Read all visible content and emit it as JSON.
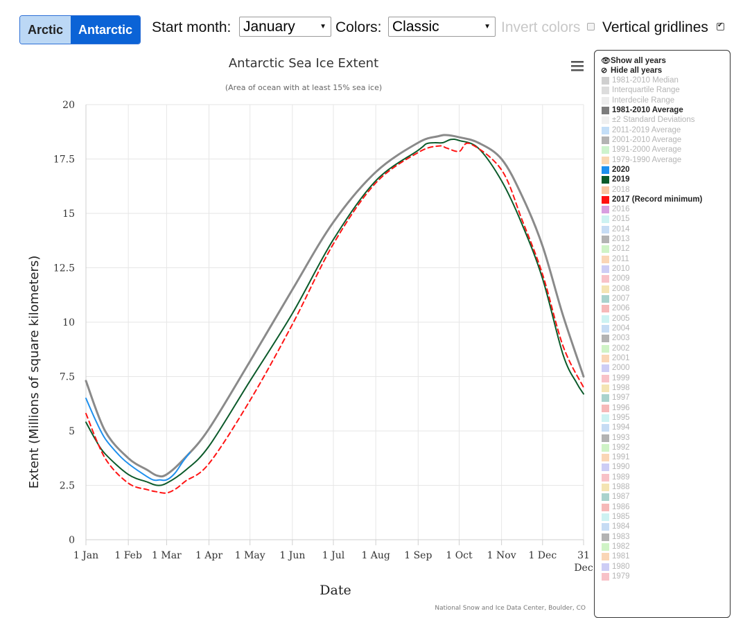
{
  "toolbar": {
    "hemispheres": [
      "Arctic",
      "Antarctic"
    ],
    "active_hemisphere": "Antarctic",
    "start_month_label": "Start month:",
    "start_month_value": "January",
    "colors_label": "Colors:",
    "colors_value": "Classic",
    "invert_colors_label": "Invert colors",
    "invert_colors_checked": false,
    "vertical_gridlines_label": "Vertical gridlines",
    "vertical_gridlines_checked": true
  },
  "legend": {
    "show_all_label": "Show all years",
    "hide_all_label": "Hide all years",
    "items": [
      {
        "label": "1981-2010 Median",
        "color": "#cfcfcf",
        "active": false
      },
      {
        "label": "Interquartile Range",
        "color": "#dcdcdc",
        "active": false
      },
      {
        "label": "Interdecile Range",
        "color": "#ececec",
        "active": false
      },
      {
        "label": "1981-2010 Average",
        "color": "#7c7c7c",
        "active": true
      },
      {
        "label": "±2 Standard Deviations",
        "color": "#efefef",
        "active": false
      },
      {
        "label": "2011-2019 Average",
        "color": "#c3def7",
        "active": false
      },
      {
        "label": "2001-2010 Average",
        "color": "#b3b3b3",
        "active": false
      },
      {
        "label": "1991-2000 Average",
        "color": "#cdf3cd",
        "active": false
      },
      {
        "label": "1979-1990 Average",
        "color": "#f9d8b4",
        "active": false
      },
      {
        "label": "2020",
        "color": "#1e90ee",
        "active": true
      },
      {
        "label": "2019",
        "color": "#0b5a2a",
        "active": true
      },
      {
        "label": "2018",
        "color": "#f9c6a1",
        "active": false
      },
      {
        "label": "2017 (Record minimum)",
        "color": "#ff1010",
        "active": true
      },
      {
        "label": "2016",
        "color": "#d89ee0",
        "active": false
      },
      {
        "label": "2015",
        "color": "#cdf2f2",
        "active": false
      },
      {
        "label": "2014",
        "color": "#c6dcf4",
        "active": false
      },
      {
        "label": "2013",
        "color": "#b3b3b3",
        "active": false
      },
      {
        "label": "2012",
        "color": "#cff3c6",
        "active": false
      },
      {
        "label": "2011",
        "color": "#fad6b6",
        "active": false
      },
      {
        "label": "2010",
        "color": "#cdcdf5",
        "active": false
      },
      {
        "label": "2009",
        "color": "#f8c2c8",
        "active": false
      },
      {
        "label": "2008",
        "color": "#f4e4b3",
        "active": false
      },
      {
        "label": "2007",
        "color": "#a9d3cd",
        "active": false
      },
      {
        "label": "2006",
        "color": "#f6b9b9",
        "active": false
      },
      {
        "label": "2005",
        "color": "#cdf2f2",
        "active": false
      },
      {
        "label": "2004",
        "color": "#c6dcf4",
        "active": false
      },
      {
        "label": "2003",
        "color": "#b3b3b3",
        "active": false
      },
      {
        "label": "2002",
        "color": "#cff3c6",
        "active": false
      },
      {
        "label": "2001",
        "color": "#fad6b6",
        "active": false
      },
      {
        "label": "2000",
        "color": "#cdcdf5",
        "active": false
      },
      {
        "label": "1999",
        "color": "#f8c2c8",
        "active": false
      },
      {
        "label": "1998",
        "color": "#f4e4b3",
        "active": false
      },
      {
        "label": "1997",
        "color": "#a9d3cd",
        "active": false
      },
      {
        "label": "1996",
        "color": "#f6b9b9",
        "active": false
      },
      {
        "label": "1995",
        "color": "#cdf2f2",
        "active": false
      },
      {
        "label": "1994",
        "color": "#c6dcf4",
        "active": false
      },
      {
        "label": "1993",
        "color": "#b3b3b3",
        "active": false
      },
      {
        "label": "1992",
        "color": "#cff3c6",
        "active": false
      },
      {
        "label": "1991",
        "color": "#fad6b6",
        "active": false
      },
      {
        "label": "1990",
        "color": "#cdcdf5",
        "active": false
      },
      {
        "label": "1989",
        "color": "#f8c2c8",
        "active": false
      },
      {
        "label": "1988",
        "color": "#f4e4b3",
        "active": false
      },
      {
        "label": "1987",
        "color": "#a9d3cd",
        "active": false
      },
      {
        "label": "1986",
        "color": "#f6b9b9",
        "active": false
      },
      {
        "label": "1985",
        "color": "#cdf2f2",
        "active": false
      },
      {
        "label": "1984",
        "color": "#c6dcf4",
        "active": false
      },
      {
        "label": "1983",
        "color": "#b3b3b3",
        "active": false
      },
      {
        "label": "1982",
        "color": "#cff3c6",
        "active": false
      },
      {
        "label": "1981",
        "color": "#fad6b6",
        "active": false
      },
      {
        "label": "1980",
        "color": "#cdcdf5",
        "active": false
      },
      {
        "label": "1979",
        "color": "#f8c2c8",
        "active": false
      }
    ]
  },
  "chart_data": {
    "type": "line",
    "title": "Antarctic Sea Ice Extent",
    "subtitle": "(Area of ocean with at least 15% sea ice)",
    "xlabel": "Date",
    "ylabel": "Extent (Millions of square kilometers)",
    "ylim": [
      0,
      20
    ],
    "yticks": [
      0,
      2.5,
      5,
      7.5,
      10,
      12.5,
      15,
      17.5,
      20
    ],
    "ytick_labels": [
      "0",
      "2.5",
      "5",
      "7.5",
      "10",
      "12.5",
      "15",
      "17.5",
      "20"
    ],
    "xlim": [
      1,
      365
    ],
    "xticks": [
      1,
      32,
      60,
      91,
      121,
      152,
      182,
      213,
      244,
      274,
      305,
      335,
      365
    ],
    "xtick_labels": [
      "1 Jan",
      "1 Feb",
      "1 Mar",
      "1 Apr",
      "1 May",
      "1 Jun",
      "1 Jul",
      "1 Aug",
      "1 Sep",
      "1 Oct",
      "1 Nov",
      "1 Dec",
      "31"
    ],
    "xtick_sublabels": {
      "31": "Dec"
    },
    "grid": {
      "horizontal": true,
      "vertical": true
    },
    "credits": "National Snow and Ice Data Center, Boulder, CO",
    "series": [
      {
        "name": "1981-2010 Average",
        "color": "#8a8a8a",
        "style": "solid",
        "x": [
          1,
          15,
          32,
          46,
          53,
          60,
          74,
          91,
          121,
          152,
          182,
          213,
          244,
          259,
          265,
          274,
          288,
          305,
          320,
          335,
          350,
          365
        ],
        "y": [
          7.3,
          5.0,
          3.75,
          3.2,
          2.95,
          3.0,
          3.8,
          5.1,
          8.2,
          11.5,
          14.6,
          16.9,
          18.25,
          18.55,
          18.6,
          18.5,
          18.25,
          17.5,
          15.8,
          13.5,
          10.3,
          7.5
        ]
      },
      {
        "name": "2019",
        "color": "#0b5a2a",
        "style": "solid",
        "x": [
          1,
          8,
          15,
          32,
          46,
          53,
          60,
          74,
          91,
          121,
          152,
          182,
          213,
          244,
          250,
          256,
          262,
          268,
          274,
          288,
          305,
          320,
          335,
          350,
          360,
          365
        ],
        "y": [
          5.4,
          4.6,
          3.95,
          3.0,
          2.65,
          2.5,
          2.6,
          3.2,
          4.3,
          7.3,
          10.4,
          13.8,
          16.5,
          17.9,
          18.2,
          18.25,
          18.25,
          18.4,
          18.35,
          18.0,
          16.5,
          14.5,
          12.0,
          8.5,
          7.2,
          6.7
        ]
      },
      {
        "name": "2020",
        "color": "#1e90ee",
        "style": "solid",
        "x": [
          1,
          8,
          15,
          25,
          32,
          42,
          50,
          55,
          60,
          66,
          72,
          77
        ],
        "y": [
          6.5,
          5.5,
          4.65,
          3.9,
          3.5,
          3.05,
          2.75,
          2.75,
          2.75,
          3.05,
          3.6,
          4.0
        ]
      },
      {
        "name": "2017 (Record minimum)",
        "color": "#ff1414",
        "style": "dashed",
        "x": [
          1,
          15,
          32,
          46,
          53,
          60,
          67,
          74,
          91,
          121,
          152,
          182,
          213,
          244,
          259,
          265,
          274,
          282,
          305,
          320,
          335,
          350,
          365
        ],
        "y": [
          5.8,
          3.75,
          2.6,
          2.3,
          2.2,
          2.15,
          2.35,
          2.7,
          3.5,
          6.4,
          9.9,
          13.6,
          16.4,
          17.8,
          18.1,
          18.0,
          17.85,
          18.2,
          17.0,
          14.7,
          12.2,
          8.9,
          7.0
        ]
      }
    ]
  }
}
